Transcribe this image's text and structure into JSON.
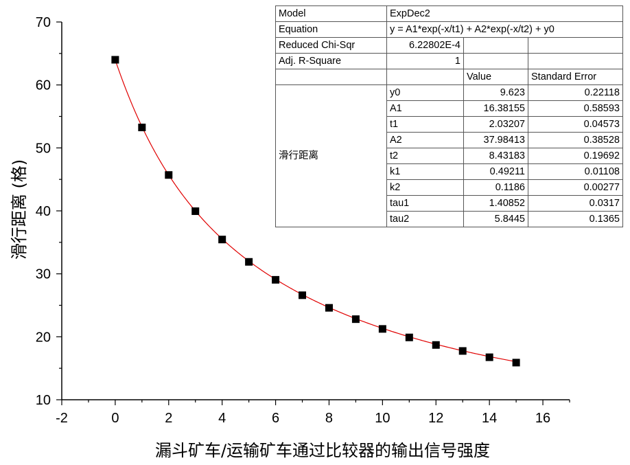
{
  "chart_data": {
    "type": "scatter",
    "title": "",
    "xlabel": "漏斗矿车/运输矿车通过比较器的输出信号强度",
    "ylabel": "滑行距离 (格)",
    "xlim": [
      -2,
      17
    ],
    "ylim": [
      10,
      70
    ],
    "x_ticks": [
      -2,
      0,
      2,
      4,
      6,
      8,
      10,
      12,
      14,
      16
    ],
    "y_ticks": [
      10,
      20,
      30,
      40,
      50,
      60,
      70
    ],
    "grid": false,
    "marker": "square",
    "marker_color": "#000000",
    "fit_line_color": "#e00000",
    "series": [
      {
        "x": [
          0,
          1,
          2,
          3,
          4,
          5,
          6,
          7,
          8,
          9,
          10,
          11,
          12,
          13,
          14,
          15
        ],
        "y": [
          64,
          53.25,
          45.7,
          39.95,
          35.45,
          31.9,
          29.05,
          26.6,
          24.6,
          22.8,
          21.25,
          19.9,
          18.7,
          17.75,
          16.75,
          15.9
        ]
      }
    ],
    "fit": {
      "y0": 9.623,
      "A1": 16.38155,
      "t1": 2.03207,
      "A2": 37.98413,
      "t2": 8.43183
    }
  },
  "fit_table": {
    "model_label": "Model",
    "model_value": "ExpDec2",
    "equation_label": "Equation",
    "equation_value": "y = A1*exp(-x/t1) + A2*exp(-x/t2) + y0",
    "chisqr_label": "Reduced Chi-Sqr",
    "chisqr_value": "6.22802E-4",
    "r2_label": "Adj. R-Square",
    "r2_value": "1",
    "value_header": "Value",
    "stderr_header": "Standard Error",
    "group_label": "滑行距离",
    "params": [
      {
        "name": "y0",
        "value": "9.623",
        "error": "0.22118"
      },
      {
        "name": "A1",
        "value": "16.38155",
        "error": "0.58593"
      },
      {
        "name": "t1",
        "value": "2.03207",
        "error": "0.04573"
      },
      {
        "name": "A2",
        "value": "37.98413",
        "error": "0.38528"
      },
      {
        "name": "t2",
        "value": "8.43183",
        "error": "0.19692"
      },
      {
        "name": "k1",
        "value": "0.49211",
        "error": "0.01108"
      },
      {
        "name": "k2",
        "value": "0.1186",
        "error": "0.00277"
      },
      {
        "name": "tau1",
        "value": "1.40852",
        "error": "0.0317"
      },
      {
        "name": "tau2",
        "value": "5.8445",
        "error": "0.1365"
      }
    ]
  }
}
